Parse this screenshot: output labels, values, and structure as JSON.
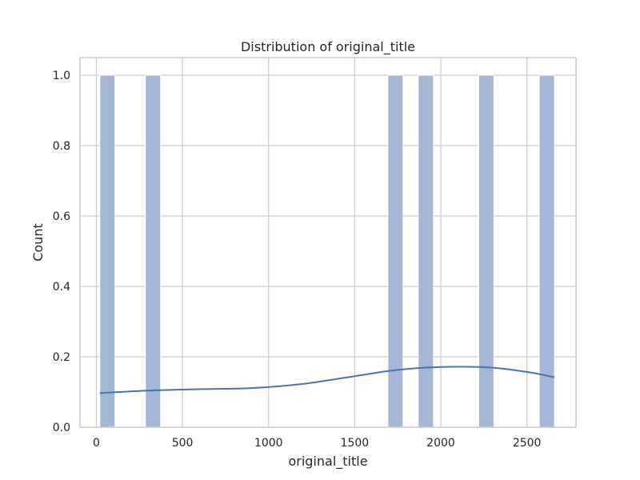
{
  "chart_data": {
    "type": "bar",
    "title": "Distribution of original_title",
    "xlabel": "original_title",
    "ylabel": "Count",
    "xlim": [
      -95,
      2785
    ],
    "ylim": [
      0,
      1.05
    ],
    "x_ticks": [
      0,
      500,
      1000,
      1500,
      2000,
      2500
    ],
    "x_tick_labels": [
      "0",
      "500",
      "1000",
      "1500",
      "2000",
      "2500"
    ],
    "y_ticks": [
      0.0,
      0.2,
      0.4,
      0.6,
      0.8,
      1.0
    ],
    "y_tick_labels": [
      "0.0",
      "0.2",
      "0.4",
      "0.6",
      "0.8",
      "1.0"
    ],
    "grid": true,
    "bins": [
      {
        "x0": 20,
        "x1": 108,
        "count": 1
      },
      {
        "x0": 285,
        "x1": 373,
        "count": 1
      },
      {
        "x0": 1693,
        "x1": 1781,
        "count": 1
      },
      {
        "x0": 1869,
        "x1": 1957,
        "count": 1
      },
      {
        "x0": 2220,
        "x1": 2308,
        "count": 1
      },
      {
        "x0": 2572,
        "x1": 2660,
        "count": 1
      }
    ],
    "kde": {
      "x": [
        20,
        300,
        600,
        900,
        1200,
        1500,
        1700,
        1900,
        2100,
        2300,
        2500,
        2660
      ],
      "y": [
        0.097,
        0.104,
        0.108,
        0.111,
        0.123,
        0.145,
        0.16,
        0.169,
        0.172,
        0.169,
        0.157,
        0.142
      ]
    },
    "colors": {
      "bar_fill": "#a5b6d6",
      "bar_stroke": "#ffffff",
      "kde_line": "#4c72b0",
      "grid": "#cccccc",
      "axes_edge": "#cccccc"
    }
  }
}
